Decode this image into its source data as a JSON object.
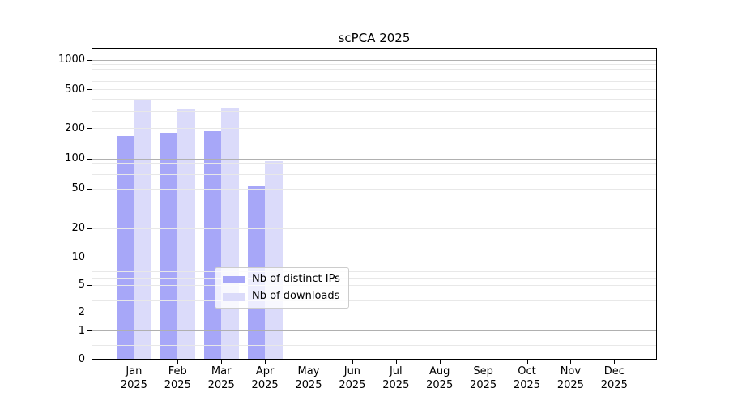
{
  "chart_data": {
    "type": "bar",
    "title": "scPCA 2025",
    "xlabel": "",
    "ylabel": "",
    "y_scale": "symlog",
    "y_ticks": [
      0,
      1,
      2,
      5,
      10,
      20,
      50,
      100,
      200,
      500,
      1000
    ],
    "y_major_gridlines": [
      1,
      10,
      100,
      1000
    ],
    "ylim": [
      0,
      1300
    ],
    "grid": true,
    "legend_position": "lower center-left inside plot",
    "categories": [
      "Jan",
      "Feb",
      "Mar",
      "Apr",
      "May",
      "Jun",
      "Jul",
      "Aug",
      "Sep",
      "Oct",
      "Nov",
      "Dec"
    ],
    "year_label": "2025",
    "series": [
      {
        "name": "Nb of distinct IPs",
        "color": "#a7a7f8",
        "values": [
          165,
          180,
          185,
          52,
          0,
          0,
          0,
          0,
          0,
          0,
          0,
          0
        ]
      },
      {
        "name": "Nb of downloads",
        "color": "#dbdbfa",
        "values": [
          400,
          315,
          320,
          93,
          0,
          0,
          0,
          0,
          0,
          0,
          0,
          0
        ]
      }
    ]
  },
  "colors": {
    "background": "#ffffff",
    "spine": "#000000",
    "grid_major": "#b0b0b0",
    "grid_minor": "#e8e8e8",
    "text": "#000000",
    "legend_border": "#cccccc"
  }
}
